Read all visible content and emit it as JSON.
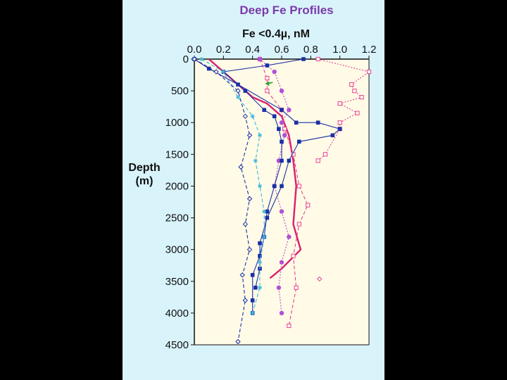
{
  "chart_data": {
    "type": "line",
    "title": "Deep Fe Profiles",
    "xlabel": "Fe <0.4µ, nM",
    "ylabel": "Depth (m)",
    "ylabel_lines": [
      "Depth",
      "(m)"
    ],
    "xlim": [
      0,
      1.2
    ],
    "ylim": [
      0,
      4500
    ],
    "y_reversed": true,
    "x_axis_position": "top",
    "x_ticks": [
      "0.0",
      "0.2",
      "0.4",
      "0.6",
      "0.8",
      "1.0",
      "1.2"
    ],
    "x_tick_values": [
      0,
      0.2,
      0.4,
      0.6,
      0.8,
      1.0,
      1.2
    ],
    "y_ticks": [
      "0",
      "500",
      "1000",
      "1500",
      "2000",
      "2500",
      "3000",
      "3500",
      "4000",
      "4500"
    ],
    "y_tick_values": [
      0,
      500,
      1000,
      1500,
      2000,
      2500,
      3000,
      3500,
      4000,
      4500
    ],
    "grid": false,
    "series": [
      {
        "color": "#e8409a",
        "style": "dotted",
        "marker": "open-square",
        "points": [
          [
            0.85,
            0
          ],
          [
            1.2,
            200
          ],
          [
            1.08,
            400
          ],
          [
            1.1,
            500
          ],
          [
            1.15,
            600
          ],
          [
            1.0,
            700
          ],
          [
            1.12,
            850
          ],
          [
            1.0,
            1000
          ],
          [
            1.0,
            1100
          ],
          [
            0.9,
            1500
          ],
          [
            0.85,
            1600
          ]
        ]
      },
      {
        "color": "#d8206e",
        "style": "solid-thick",
        "marker": "none",
        "points": [
          [
            0.1,
            0
          ],
          [
            0.2,
            200
          ],
          [
            0.3,
            400
          ],
          [
            0.4,
            600
          ],
          [
            0.5,
            700
          ],
          [
            0.6,
            900
          ],
          [
            0.65,
            1200
          ],
          [
            0.68,
            1600
          ],
          [
            0.7,
            2000
          ],
          [
            0.68,
            2600
          ],
          [
            0.73,
            3000
          ],
          [
            0.6,
            3300
          ],
          [
            0.52,
            3450
          ]
        ]
      },
      {
        "color": "#e8409a",
        "style": "dashed",
        "marker": "open-square",
        "points": [
          [
            0.45,
            0
          ],
          [
            0.5,
            300
          ],
          [
            0.5,
            500
          ],
          [
            0.6,
            800
          ],
          [
            0.62,
            1100
          ],
          [
            0.68,
            1500
          ],
          [
            0.72,
            2000
          ],
          [
            0.78,
            2300
          ],
          [
            0.72,
            2600
          ],
          [
            0.68,
            3100
          ],
          [
            0.7,
            3600
          ],
          [
            0.65,
            4200
          ]
        ]
      },
      {
        "color": "#b24fd6",
        "style": "dotted",
        "marker": "filled-circle",
        "points": [
          [
            0.45,
            0
          ],
          [
            0.55,
            200
          ],
          [
            0.6,
            500
          ],
          [
            0.65,
            800
          ],
          [
            0.6,
            1000
          ],
          [
            0.62,
            1200
          ],
          [
            0.58,
            1600
          ],
          [
            0.55,
            2000
          ],
          [
            0.6,
            2400
          ],
          [
            0.65,
            2800
          ],
          [
            0.6,
            3200
          ],
          [
            0.58,
            3600
          ],
          [
            0.6,
            4000
          ]
        ]
      },
      {
        "color": "#1a2fa8",
        "style": "solid",
        "marker": "filled-square",
        "points": [
          [
            0.75,
            0
          ],
          [
            0.5,
            100
          ],
          [
            0.2,
            200
          ],
          [
            0.35,
            500
          ],
          [
            0.48,
            800
          ],
          [
            0.55,
            900
          ],
          [
            0.58,
            1100
          ],
          [
            0.6,
            1300
          ],
          [
            0.6,
            1600
          ],
          [
            0.55,
            2000
          ],
          [
            0.5,
            2400
          ],
          [
            0.48,
            2800
          ],
          [
            0.45,
            3100
          ],
          [
            0.4,
            3400
          ],
          [
            0.4,
            3800
          ],
          [
            0.4,
            4000
          ]
        ]
      },
      {
        "color": "#1a2fa8",
        "style": "solid",
        "marker": "filled-square",
        "points": [
          [
            0.0,
            0
          ],
          [
            0.1,
            150
          ],
          [
            0.3,
            400
          ],
          [
            0.6,
            800
          ],
          [
            0.7,
            1000
          ],
          [
            0.85,
            1000
          ],
          [
            1.0,
            1100
          ],
          [
            0.95,
            1200
          ],
          [
            0.72,
            1300
          ],
          [
            0.65,
            1600
          ],
          [
            0.6,
            2000
          ],
          [
            0.5,
            2500
          ],
          [
            0.45,
            2900
          ],
          [
            0.45,
            3300
          ],
          [
            0.42,
            3600
          ]
        ]
      },
      {
        "color": "#3fb8dc",
        "style": "dashed",
        "marker": "asterisk",
        "points": [
          [
            0.05,
            0
          ],
          [
            0.2,
            200
          ],
          [
            0.3,
            600
          ],
          [
            0.4,
            900
          ],
          [
            0.45,
            1200
          ],
          [
            0.42,
            1600
          ],
          [
            0.45,
            2000
          ],
          [
            0.48,
            2400
          ],
          [
            0.48,
            2800
          ],
          [
            0.45,
            3200
          ],
          [
            0.45,
            3600
          ],
          [
            0.4,
            4000
          ]
        ]
      },
      {
        "color": "#1a2fa8",
        "style": "dashed",
        "marker": "open-diamond",
        "points": [
          [
            0.0,
            0
          ],
          [
            0.15,
            200
          ],
          [
            0.3,
            500
          ],
          [
            0.35,
            900
          ],
          [
            0.38,
            1200
          ],
          [
            0.32,
            1700
          ],
          [
            0.38,
            2200
          ],
          [
            0.35,
            2600
          ],
          [
            0.38,
            3000
          ],
          [
            0.33,
            3400
          ],
          [
            0.35,
            3800
          ],
          [
            0.3,
            4450
          ]
        ]
      }
    ]
  }
}
